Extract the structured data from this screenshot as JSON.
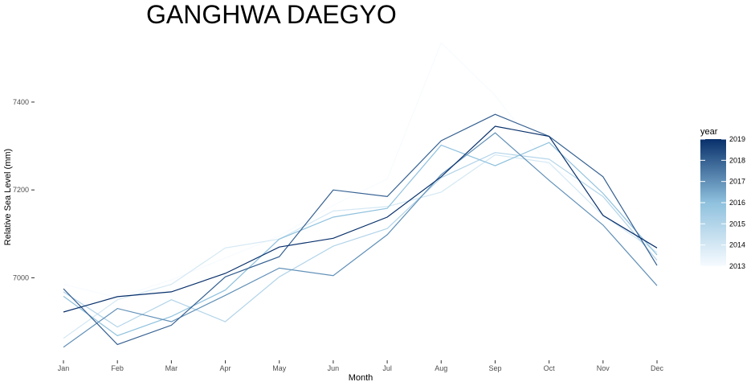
{
  "chart_data": {
    "type": "line",
    "title": "GANGHWA DAEGYO",
    "xlabel": "Month",
    "ylabel": "Relative Sea Level (mm)",
    "categories": [
      "Jan",
      "Feb",
      "Mar",
      "Apr",
      "May",
      "Jun",
      "Jul",
      "Aug",
      "Sep",
      "Oct",
      "Nov",
      "Dec"
    ],
    "yticks": [
      7000,
      7200,
      7400
    ],
    "ylim": [
      6825,
      7550
    ],
    "grid": false,
    "legend": {
      "title": "year",
      "placement": "right",
      "min": 2013,
      "max": 2019,
      "labels": [
        "2019",
        "2018",
        "2017",
        "2016",
        "2015",
        "2014",
        "2013"
      ],
      "color_low": "#f7fbff",
      "color_high": "#08306b"
    },
    "series": [
      {
        "year": 2013,
        "values": [
          6985,
          6955,
          6995,
          7045,
          7095,
          7165,
          7225,
          7535,
          7415,
          7255,
          7185,
          7055
        ]
      },
      {
        "year": 2014,
        "values": [
          6862,
          6950,
          6985,
          7068,
          7088,
          7152,
          7162,
          7195,
          7280,
          7262,
          7142,
          7058
        ]
      },
      {
        "year": 2015,
        "values": [
          6968,
          6888,
          6950,
          6900,
          7002,
          7072,
          7112,
          7228,
          7285,
          7270,
          7185,
          7040
        ]
      },
      {
        "year": 2016,
        "values": [
          6958,
          6868,
          6912,
          6972,
          7088,
          7138,
          7158,
          7302,
          7255,
          7308,
          7192,
          7052
        ]
      },
      {
        "year": 2017,
        "values": [
          6842,
          6930,
          6900,
          6960,
          7022,
          7005,
          7098,
          7235,
          7330,
          7222,
          7120,
          6982
        ]
      },
      {
        "year": 2018,
        "values": [
          6975,
          6848,
          6892,
          7002,
          7048,
          7200,
          7185,
          7312,
          7372,
          7322,
          7230,
          7028
        ]
      },
      {
        "year": 2019,
        "values": [
          6922,
          6957,
          6968,
          7010,
          7070,
          7090,
          7138,
          7230,
          7345,
          7322,
          7142,
          7068
        ]
      }
    ]
  }
}
